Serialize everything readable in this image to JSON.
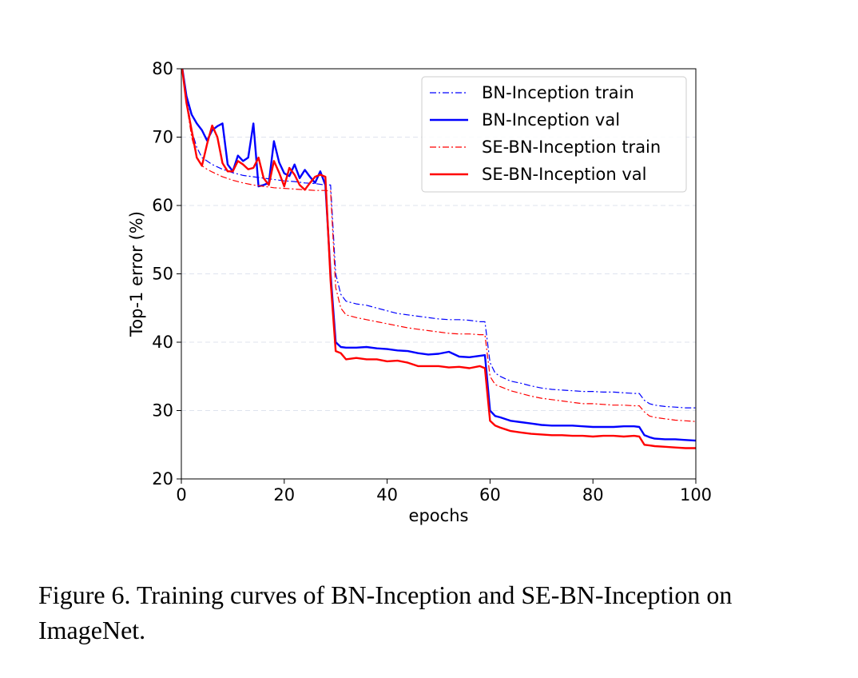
{
  "caption": "Figure 6. Training curves of BN-Inception and SE-BN-Inception on ImageNet.",
  "chart_data": {
    "type": "line",
    "title": "",
    "xlabel": "epochs",
    "ylabel": "Top-1 error (%)",
    "xlim": [
      0,
      100
    ],
    "ylim": [
      20,
      80
    ],
    "xticks": [
      0,
      20,
      40,
      60,
      80,
      100
    ],
    "yticks": [
      20,
      30,
      40,
      50,
      60,
      70,
      80
    ],
    "grid": "horizontal dashed",
    "legend_position": "upper right",
    "series": [
      {
        "name": "BN-Inception train",
        "color": "#0000ff",
        "style": "dashdot",
        "x": [
          0,
          1,
          2,
          3,
          4,
          5,
          6,
          8,
          10,
          12,
          14,
          16,
          18,
          20,
          22,
          24,
          26,
          28,
          29,
          30,
          31,
          32,
          34,
          36,
          38,
          40,
          42,
          44,
          46,
          48,
          50,
          52,
          54,
          56,
          58,
          59,
          60,
          61,
          62,
          64,
          66,
          68,
          70,
          72,
          74,
          76,
          78,
          80,
          82,
          84,
          86,
          88,
          89,
          90,
          91,
          92,
          94,
          96,
          98,
          100
        ],
        "y": [
          81,
          76,
          71,
          68.5,
          67,
          66.5,
          66,
          65.3,
          64.8,
          64.4,
          64.2,
          64.0,
          63.8,
          63.6,
          63.5,
          63.3,
          63.2,
          63.0,
          63.0,
          50,
          47,
          46,
          45.6,
          45.4,
          45.0,
          44.6,
          44.2,
          44.0,
          43.8,
          43.6,
          43.4,
          43.3,
          43.3,
          43.2,
          43.0,
          43.0,
          37,
          35.5,
          35,
          34.3,
          34.0,
          33.6,
          33.3,
          33.1,
          33.0,
          32.9,
          32.8,
          32.8,
          32.7,
          32.7,
          32.6,
          32.5,
          32.5,
          31.5,
          31,
          30.8,
          30.6,
          30.5,
          30.4,
          30.4
        ]
      },
      {
        "name": "BN-Inception val",
        "color": "#0000ff",
        "style": "solid",
        "x": [
          0,
          1,
          2,
          3,
          4,
          5,
          6,
          7,
          8,
          9,
          10,
          11,
          12,
          13,
          14,
          15,
          16,
          17,
          18,
          19,
          20,
          21,
          22,
          23,
          24,
          25,
          26,
          27,
          28,
          29,
          30,
          31,
          32,
          34,
          36,
          38,
          40,
          42,
          44,
          46,
          48,
          50,
          52,
          54,
          56,
          58,
          59,
          60,
          61,
          62,
          64,
          66,
          68,
          70,
          72,
          74,
          76,
          78,
          80,
          82,
          84,
          86,
          88,
          89,
          90,
          91,
          92,
          94,
          96,
          98,
          100
        ],
        "y": [
          81,
          76,
          73.3,
          72,
          71,
          69.5,
          71,
          71.6,
          72,
          66,
          65,
          67.3,
          66.5,
          67,
          72,
          62.8,
          63,
          63.3,
          69.4,
          66.3,
          64.7,
          64.3,
          66,
          64,
          65.2,
          64.2,
          63.3,
          65,
          63,
          50,
          40,
          39.3,
          39.2,
          39.2,
          39.3,
          39.1,
          39.0,
          38.8,
          38.7,
          38.4,
          38.2,
          38.3,
          38.6,
          37.9,
          37.8,
          38.0,
          38.1,
          30,
          29.2,
          29,
          28.5,
          28.3,
          28.1,
          27.9,
          27.8,
          27.8,
          27.8,
          27.7,
          27.6,
          27.6,
          27.6,
          27.7,
          27.7,
          27.6,
          26.4,
          26.1,
          25.9,
          25.8,
          25.8,
          25.7,
          25.6
        ]
      },
      {
        "name": "SE-BN-Inception train",
        "color": "#ff0000",
        "style": "dashdot",
        "x": [
          0,
          1,
          2,
          3,
          4,
          5,
          6,
          8,
          10,
          12,
          14,
          16,
          18,
          20,
          22,
          24,
          26,
          28,
          29,
          30,
          31,
          32,
          34,
          36,
          38,
          40,
          42,
          44,
          46,
          48,
          50,
          52,
          54,
          56,
          58,
          59,
          60,
          61,
          62,
          64,
          66,
          68,
          70,
          72,
          74,
          76,
          78,
          80,
          82,
          84,
          86,
          88,
          89,
          90,
          91,
          92,
          94,
          96,
          98,
          100
        ],
        "y": [
          81,
          75,
          70,
          67.2,
          65.8,
          65.3,
          64.9,
          64.2,
          63.7,
          63.3,
          63.0,
          62.8,
          62.6,
          62.5,
          62.4,
          62.3,
          62.2,
          62.2,
          62.1,
          48,
          45,
          44,
          43.6,
          43.3,
          43.0,
          42.7,
          42.4,
          42.1,
          41.9,
          41.7,
          41.5,
          41.3,
          41.2,
          41.2,
          41.1,
          41.1,
          35,
          33.8,
          33.5,
          32.9,
          32.5,
          32.1,
          31.8,
          31.6,
          31.4,
          31.2,
          31.0,
          31.0,
          30.9,
          30.8,
          30.8,
          30.7,
          30.7,
          29.8,
          29.2,
          29.0,
          28.8,
          28.6,
          28.5,
          28.4
        ]
      },
      {
        "name": "SE-BN-Inception val",
        "color": "#ff0000",
        "style": "solid",
        "x": [
          0,
          1,
          2,
          3,
          4,
          5,
          6,
          7,
          8,
          9,
          10,
          11,
          12,
          13,
          14,
          15,
          16,
          17,
          18,
          19,
          20,
          21,
          22,
          23,
          24,
          25,
          26,
          27,
          28,
          29,
          30,
          31,
          32,
          34,
          36,
          38,
          40,
          42,
          44,
          46,
          48,
          50,
          52,
          54,
          56,
          58,
          59,
          60,
          61,
          62,
          64,
          66,
          68,
          70,
          72,
          74,
          76,
          78,
          80,
          82,
          84,
          86,
          88,
          89,
          90,
          91,
          92,
          94,
          96,
          98,
          100
        ],
        "y": [
          81,
          75,
          71,
          67,
          65.8,
          69,
          71.7,
          70,
          66.2,
          65,
          65,
          66.5,
          66,
          65.3,
          65.5,
          67,
          64,
          63,
          66.5,
          64.8,
          62.8,
          65.5,
          64.5,
          63,
          62.3,
          63.3,
          64.2,
          64.5,
          64.2,
          49,
          38.7,
          38.4,
          37.5,
          37.7,
          37.5,
          37.5,
          37.2,
          37.3,
          37.0,
          36.5,
          36.5,
          36.5,
          36.3,
          36.4,
          36.2,
          36.5,
          36.2,
          28.5,
          27.8,
          27.5,
          27.0,
          26.8,
          26.6,
          26.5,
          26.4,
          26.4,
          26.3,
          26.3,
          26.2,
          26.3,
          26.3,
          26.2,
          26.3,
          26.2,
          25.0,
          24.9,
          24.8,
          24.7,
          24.6,
          24.5,
          24.5
        ]
      }
    ]
  }
}
